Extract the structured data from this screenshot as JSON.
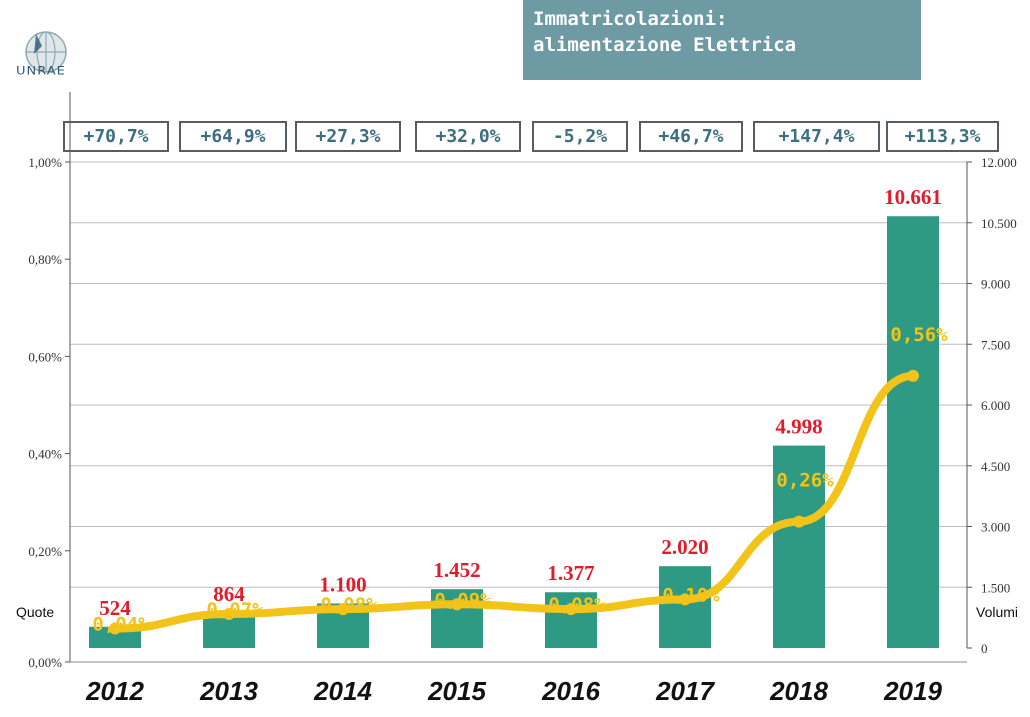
{
  "header": {
    "logo_text": "UNRAE",
    "title_line1": "Immatricolazioni:",
    "title_line2": "alimentazione Elettrica"
  },
  "growth_labels": [
    "+70,7%",
    "+64,9%",
    "+27,3%",
    "+32,0%",
    "-5,2%",
    "+46,7%",
    "+147,4%",
    "+113,3%"
  ],
  "colors": {
    "bar": "#2e9a83",
    "line": "#f2c319",
    "volume_label": "#e21b2a",
    "title_bg": "#6e9aa4",
    "growth_text": "#3e6e80"
  },
  "chart_data": {
    "type": "bar+line",
    "categories": [
      "2012",
      "2013",
      "2014",
      "2015",
      "2016",
      "2017",
      "2018",
      "2019"
    ],
    "series": [
      {
        "name": "Volumi",
        "type": "bar",
        "axis": "right",
        "values": [
          524,
          864,
          1100,
          1452,
          1377,
          2020,
          4998,
          10661
        ],
        "labels": [
          "524",
          "864",
          "1.100",
          "1.452",
          "1.377",
          "2.020",
          "4.998",
          "10.661"
        ]
      },
      {
        "name": "Quote",
        "type": "line",
        "axis": "left",
        "values": [
          0.04,
          0.07,
          0.08,
          0.09,
          0.08,
          0.1,
          0.26,
          0.56
        ],
        "labels": [
          "0,04%",
          "0,07%",
          "0,08%",
          "0,09%",
          "0,08%",
          "0,10%",
          "0,26%",
          "0,56%"
        ]
      }
    ],
    "y_left": {
      "label": "Quote",
      "ylim": [
        0,
        1.0
      ],
      "ticks": [
        0,
        0.2,
        0.4,
        0.6,
        0.8,
        1.0
      ],
      "tick_labels": [
        "0,00%",
        "0,20%",
        "0,40%",
        "0,60%",
        "0,80%",
        "1,00%"
      ]
    },
    "y_right": {
      "label": "Volumi",
      "ylim": [
        0,
        12000
      ],
      "ticks": [
        0,
        1500,
        3000,
        4500,
        6000,
        7500,
        9000,
        10500,
        12000
      ],
      "tick_labels": [
        "0",
        "1.500",
        "3.000",
        "4.500",
        "6.000",
        "7.500",
        "9.000",
        "10.500",
        "12.000"
      ]
    },
    "grid": true
  }
}
